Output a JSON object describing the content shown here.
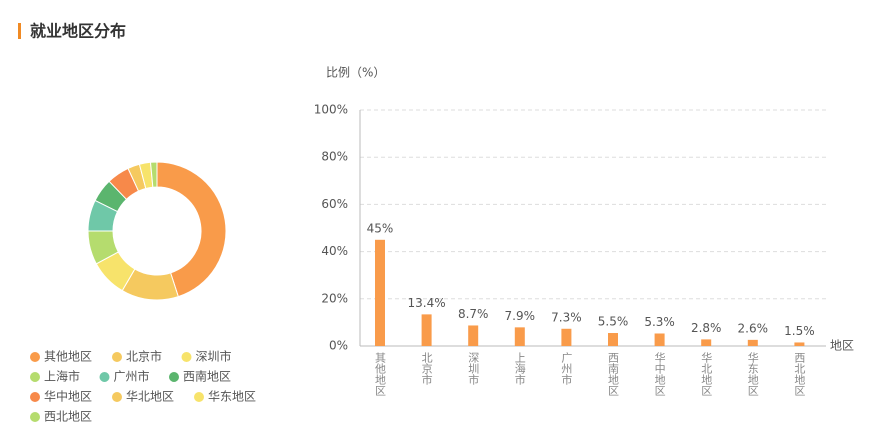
{
  "header": {
    "title": "就业地区分布"
  },
  "chart_data": [
    {
      "type": "pie",
      "donut": true,
      "categories": [
        "其他地区",
        "北京市",
        "深圳市",
        "上海市",
        "广州市",
        "西南地区",
        "华中地区",
        "华北地区",
        "华东地区",
        "西北地区"
      ],
      "values": [
        45,
        13.4,
        8.7,
        7.9,
        7.3,
        5.5,
        5.3,
        2.8,
        2.6,
        1.5
      ],
      "colors": [
        "#f99b4a",
        "#f5c95f",
        "#f7e36b",
        "#b5dc6e",
        "#6fc8a8",
        "#5bb56e",
        "#f7894a",
        "#f5c95f",
        "#f7e36b",
        "#b5dc6e"
      ]
    },
    {
      "type": "bar",
      "ylabel": "比例（%）",
      "xlabel": "地区",
      "categories": [
        "其他地区",
        "北京市",
        "深圳市",
        "上海市",
        "广州市",
        "西南地区",
        "华中地区",
        "华北地区",
        "华东地区",
        "西北地区"
      ],
      "values": [
        45,
        13.4,
        8.7,
        7.9,
        7.3,
        5.5,
        5.3,
        2.8,
        2.6,
        1.5
      ],
      "value_labels": [
        "45%",
        "13.4%",
        "8.7%",
        "7.9%",
        "7.3%",
        "5.5%",
        "5.3%",
        "2.8%",
        "2.6%",
        "1.5%"
      ],
      "color": "#f99b4a",
      "ylim": [
        0,
        100
      ],
      "yticks": [
        {
          "value": 0,
          "label": "0%"
        },
        {
          "value": 20,
          "label": "20%"
        },
        {
          "value": 40,
          "label": "40%"
        },
        {
          "value": 60,
          "label": "60%"
        },
        {
          "value": 80,
          "label": "80%"
        },
        {
          "value": 100,
          "label": "100%"
        }
      ],
      "grid": true
    }
  ]
}
